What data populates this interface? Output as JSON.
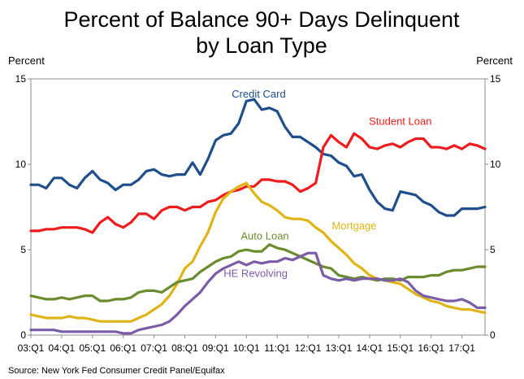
{
  "chart_data": {
    "type": "line",
    "title_line1": "Percent of Balance 90+ Days Delinquent",
    "title_line2": "by Loan Type",
    "ylabel_left": "Percent",
    "ylabel_right": "Percent",
    "ylim": [
      0,
      15
    ],
    "yticks": [
      0,
      5,
      10,
      15
    ],
    "yticks_right": [
      0,
      5,
      10,
      15
    ],
    "x_start_year": 2003,
    "x_end": 2017.75,
    "xticks": [
      "03:Q1",
      "04:Q1",
      "05:Q1",
      "06:Q1",
      "07:Q1",
      "08:Q1",
      "09:Q1",
      "10:Q1",
      "11:Q1",
      "12:Q1",
      "13:Q1",
      "14:Q1",
      "15:Q1",
      "16:Q1",
      "17:Q1"
    ],
    "source": "Source: New York Fed Consumer Credit Panel/Equifax",
    "series": [
      {
        "name": "Credit Card",
        "color": "#1f4e8c",
        "label_at": [
          2010.4,
          13.9
        ],
        "values": [
          8.8,
          8.8,
          8.6,
          9.2,
          9.2,
          8.8,
          8.6,
          9.2,
          9.6,
          9.1,
          8.9,
          8.5,
          8.8,
          8.8,
          9.1,
          9.6,
          9.7,
          9.4,
          9.3,
          9.4,
          9.4,
          10.1,
          9.4,
          10.3,
          11.4,
          11.7,
          11.8,
          12.4,
          13.7,
          13.8,
          13.2,
          13.3,
          13.1,
          12.2,
          11.6,
          11.6,
          11.3,
          11.0,
          10.6,
          10.5,
          10.1,
          9.9,
          9.3,
          9.4,
          8.5,
          7.8,
          7.4,
          7.3,
          8.4,
          8.3,
          8.2,
          7.8,
          7.6,
          7.2,
          7.0,
          7.0,
          7.4,
          7.4,
          7.4,
          7.5
        ]
      },
      {
        "name": "Student Loan",
        "color": "#ee1c1c",
        "label_at": [
          2015.0,
          12.3
        ],
        "values": [
          6.1,
          6.1,
          6.2,
          6.2,
          6.3,
          6.3,
          6.3,
          6.2,
          6.0,
          6.6,
          6.9,
          6.5,
          6.3,
          6.6,
          7.1,
          7.1,
          6.8,
          7.3,
          7.5,
          7.5,
          7.3,
          7.5,
          7.5,
          7.8,
          7.9,
          8.2,
          8.4,
          8.5,
          8.7,
          8.7,
          9.1,
          9.1,
          9.0,
          9.0,
          8.8,
          8.4,
          8.6,
          8.9,
          11.0,
          11.7,
          11.3,
          11.0,
          11.8,
          11.5,
          11.0,
          10.9,
          11.1,
          11.2,
          11.0,
          11.3,
          11.5,
          11.5,
          11.0,
          11.0,
          10.9,
          11.1,
          10.9,
          11.2,
          11.1,
          10.9
        ]
      },
      {
        "name": "Mortgage",
        "color": "#e0b416",
        "label_at": [
          2013.5,
          6.2
        ],
        "values": [
          1.2,
          1.1,
          1.0,
          1.0,
          1.0,
          1.1,
          1.0,
          1.0,
          0.9,
          0.8,
          0.8,
          0.8,
          0.8,
          0.8,
          1.0,
          1.2,
          1.5,
          1.8,
          2.3,
          3.0,
          3.9,
          4.3,
          5.2,
          6.0,
          7.2,
          8.0,
          8.4,
          8.7,
          8.9,
          8.3,
          7.8,
          7.6,
          7.3,
          6.9,
          6.8,
          6.8,
          6.7,
          6.3,
          6.0,
          5.5,
          5.1,
          4.7,
          4.2,
          3.9,
          3.5,
          3.3,
          3.2,
          3.1,
          3.0,
          2.7,
          2.4,
          2.2,
          2.0,
          1.9,
          1.7,
          1.6,
          1.5,
          1.5,
          1.4,
          1.3
        ]
      },
      {
        "name": "Auto Loan",
        "color": "#6a8b2e",
        "label_at": [
          2010.6,
          5.6
        ],
        "values": [
          2.3,
          2.2,
          2.1,
          2.1,
          2.2,
          2.1,
          2.2,
          2.3,
          2.3,
          2.0,
          2.0,
          2.1,
          2.1,
          2.2,
          2.5,
          2.6,
          2.6,
          2.5,
          2.8,
          3.1,
          3.2,
          3.3,
          3.7,
          4.0,
          4.3,
          4.5,
          4.6,
          4.9,
          5.0,
          4.9,
          4.9,
          5.3,
          5.1,
          5.0,
          4.8,
          4.6,
          4.4,
          4.2,
          4.0,
          3.9,
          3.5,
          3.4,
          3.3,
          3.4,
          3.3,
          3.2,
          3.3,
          3.3,
          3.2,
          3.4,
          3.4,
          3.4,
          3.5,
          3.5,
          3.7,
          3.8,
          3.8,
          3.9,
          4.0,
          4.0
        ]
      },
      {
        "name": "HE Revolving",
        "color": "#7a5ca8",
        "label_at": [
          2010.3,
          3.4
        ],
        "values": [
          0.3,
          0.3,
          0.3,
          0.3,
          0.2,
          0.2,
          0.2,
          0.2,
          0.2,
          0.2,
          0.2,
          0.2,
          0.1,
          0.1,
          0.3,
          0.4,
          0.5,
          0.6,
          0.8,
          1.2,
          1.7,
          2.1,
          2.5,
          3.1,
          3.6,
          3.9,
          4.1,
          4.3,
          4.1,
          4.3,
          4.2,
          4.3,
          4.3,
          4.5,
          4.4,
          4.6,
          4.8,
          4.8,
          3.5,
          3.3,
          3.2,
          3.3,
          3.2,
          3.3,
          3.3,
          3.3,
          3.2,
          3.2,
          3.3,
          3.1,
          2.6,
          2.3,
          2.2,
          2.1,
          2.0,
          2.0,
          2.1,
          1.9,
          1.6,
          1.6
        ]
      }
    ]
  }
}
